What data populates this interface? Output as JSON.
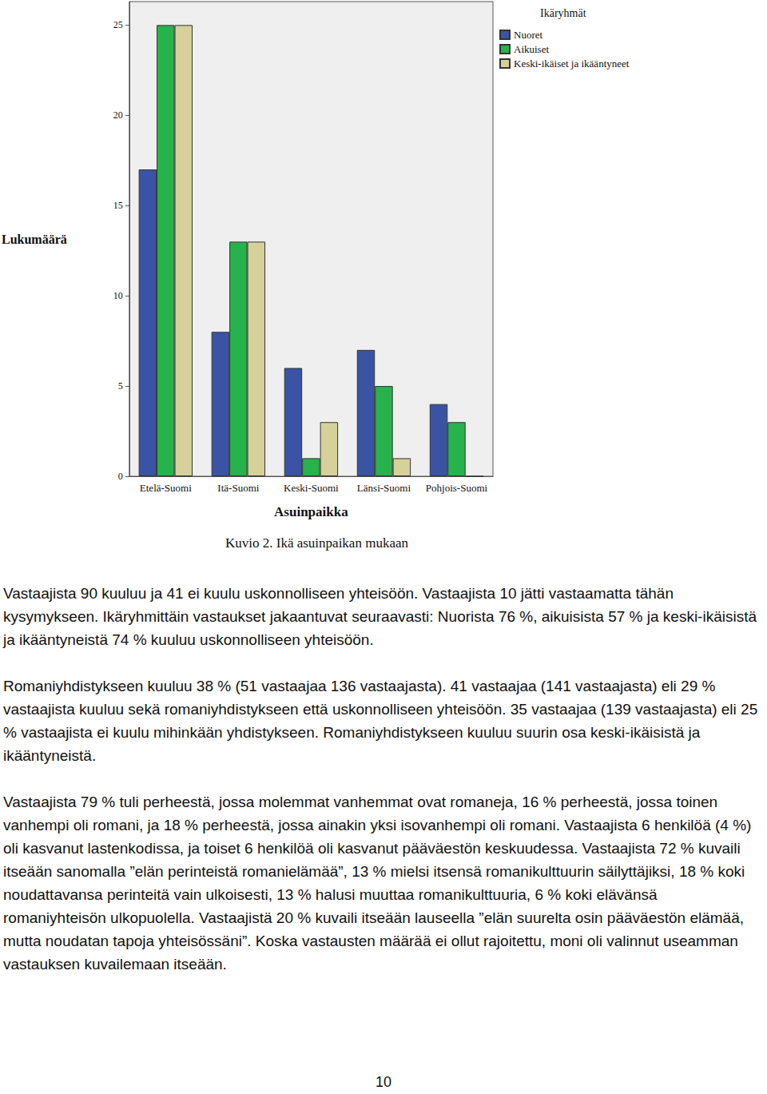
{
  "chart_data": {
    "type": "bar",
    "categories": [
      "Etelä-Suomi",
      "Itä-Suomi",
      "Keski-Suomi",
      "Länsi-Suomi",
      "Pohjois-Suomi"
    ],
    "series": [
      {
        "name": "Nuoret",
        "color": "#3b53a4",
        "values": [
          17,
          8,
          6,
          7,
          4
        ]
      },
      {
        "name": "Aikuiset",
        "color": "#28b24b",
        "values": [
          25,
          13,
          1,
          5,
          3
        ]
      },
      {
        "name": "Keski-ikäiset ja ikääntyneet",
        "color": "#d6d09b",
        "values": [
          25,
          13,
          3,
          1,
          0
        ]
      }
    ],
    "x_label": "Asuinpaikka",
    "y_label": "Lukumäärä",
    "legend_title": "Ikäryhmät",
    "caption": "Kuvio 2. Ikä asuinpaikan mukaan",
    "ylim": [
      0,
      26.3
    ],
    "yticks": [
      0,
      5,
      10,
      15,
      20,
      25
    ],
    "grid": false,
    "legend": "top-right"
  },
  "document": {
    "paragraphs": [
      "Vastaajista 90 kuuluu ja 41 ei kuulu uskonnolliseen yhteisöön. Vastaajista 10 jätti vastaamatta tähän kysymykseen. Ikäryhmittäin vastaukset jakaantuvat seuraavasti: Nuorista 76 %, aikuisista 57 % ja keski-ikäisistä ja ikääntyneistä 74 % kuuluu uskonnolliseen yhteisöön.",
      "Romaniyhdistykseen kuuluu 38 % (51 vastaajaa 136 vastaajasta). 41 vastaajaa (141 vastaajasta) eli 29 % vastaajista kuuluu sekä romaniyhdistykseen että uskonnolliseen yhteisöön. 35 vastaajaa (139 vastaajasta) eli 25 % vastaajista ei kuulu mihinkään yhdistykseen. Romaniyhdistykseen kuuluu suurin osa keski-ikäisistä ja ikääntyneistä.",
      "Vastaajista 79 % tuli perheestä, jossa molemmat vanhemmat ovat romaneja, 16 % perheestä, jossa toinen vanhempi oli romani, ja 18 % perheestä, jossa ainakin yksi isovanhempi oli romani. Vastaajista 6 henkilöä (4 %) oli kasvanut lastenkodissa, ja toiset 6 henkilöä oli kasvanut pääväestön keskuudessa. Vastaajista 72 % kuvaili itseään sanomalla ”elän perinteistä romanielämää”, 13 % mielsi itsensä romanikulttuurin säilyttäjiksi, 18 % koki noudattavansa perinteitä vain ulkoisesti, 13 % halusi muuttaa romanikulttuuria, 6 % koki elävänsä romaniyhteisön ulkopuolella. Vastaajistä 20 % kuvaili itseään lauseella ”elän suurelta osin pääväestön elämää, mutta noudatan tapoja yhteisössäni”. Koska vastausten määrää ei ollut rajoitettu, moni oli valinnut useamman vastauksen kuvailemaan itseään."
    ],
    "page_number": 10
  }
}
